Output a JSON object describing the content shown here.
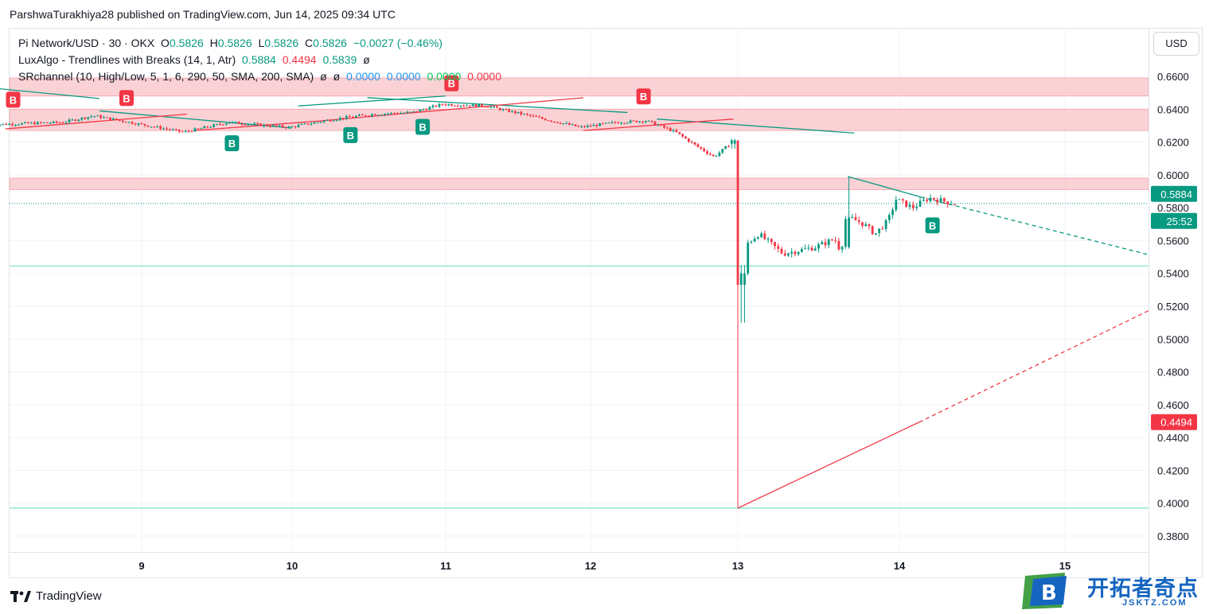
{
  "header": {
    "publish_line": "ParshwaTurakhiya28 published on TradingView.com, Jun 14, 2025 09:34 UTC"
  },
  "legend": {
    "symbol": "Pi Network/USD · 30 · OKX",
    "o_label": "O",
    "o_value": "0.5826",
    "h_label": "H",
    "h_value": "0.5826",
    "l_label": "L",
    "l_value": "0.5826",
    "c_label": "C",
    "c_value": "0.5826",
    "change": "−0.0027 (−0.46%)",
    "ind1_name": "LuxAlgo - Trendlines with Breaks (14, 1, Atr)",
    "ind1_v1": "0.5884",
    "ind1_v2": "0.4494",
    "ind1_v3": "0.5839",
    "ind1_v4": "ø",
    "ind2_name": "SRchannel (10, High/Low, 5, 1, 6, 290, 50, SMA, 200, SMA)",
    "ind2_v1": "ø",
    "ind2_v2": "ø",
    "ind2_v3": "0.0000",
    "ind2_v4": "0.0000",
    "ind2_v5": "0.0000",
    "ind2_v6": "0.0000"
  },
  "currency_button": "USD",
  "branding": {
    "tradingview": "TradingView",
    "watermark_text": "开拓者奇点",
    "watermark_sub": "JSKTZ.COM",
    "watermark_letter": "B"
  },
  "colors": {
    "up": "#089981",
    "down": "#f23645",
    "zone": "#f8bfc3",
    "support": "#7ee2c4"
  },
  "chart_data": {
    "type": "candlestick",
    "title": "Pi Network/USD · 30 · OKX",
    "ylim": [
      0.37,
      0.672
    ],
    "x_ticks": [
      "9",
      "10",
      "11",
      "12",
      "13",
      "14",
      "15"
    ],
    "y_ticks": [
      "0.6600",
      "0.6400",
      "0.6200",
      "0.6000",
      "0.5800",
      "0.5600",
      "0.5400",
      "0.5200",
      "0.5000",
      "0.4800",
      "0.4600",
      "0.4400",
      "0.4200",
      "0.4000",
      "0.3800"
    ],
    "price_labels": [
      {
        "value": 0.5884,
        "text": "0.5884",
        "color": "#089981"
      },
      {
        "value": 0.5826,
        "text": "25:52",
        "color": "#089981"
      },
      {
        "value": 0.4494,
        "text": "0.4494",
        "color": "#f23645"
      }
    ],
    "resistance_zones": [
      [
        0.648,
        0.659
      ],
      [
        0.627,
        0.64
      ],
      [
        0.591,
        0.598
      ]
    ],
    "support_levels": [
      0.5445,
      0.397
    ],
    "current_price": 0.5826,
    "signals": [
      {
        "x": 8.15,
        "label": "B",
        "color": "#f23645",
        "y": 0.639,
        "pos": "above"
      },
      {
        "x": 8.9,
        "label": "B",
        "color": "#f23645",
        "y": 0.64,
        "pos": "above"
      },
      {
        "x": 9.6,
        "label": "B",
        "color": "#089981",
        "y": 0.626,
        "pos": "below"
      },
      {
        "x": 10.38,
        "label": "B",
        "color": "#089981",
        "y": 0.631,
        "pos": "below"
      },
      {
        "x": 10.85,
        "label": "B",
        "color": "#089981",
        "y": 0.636,
        "pos": "below"
      },
      {
        "x": 11.04,
        "label": "B",
        "color": "#f23645",
        "y": 0.649,
        "pos": "above"
      },
      {
        "x": 12.36,
        "label": "B",
        "color": "#f23645",
        "y": 0.641,
        "pos": "above"
      },
      {
        "x": 14.2,
        "label": "B",
        "color": "#089981",
        "y": 0.576,
        "pos": "below"
      }
    ]
  }
}
